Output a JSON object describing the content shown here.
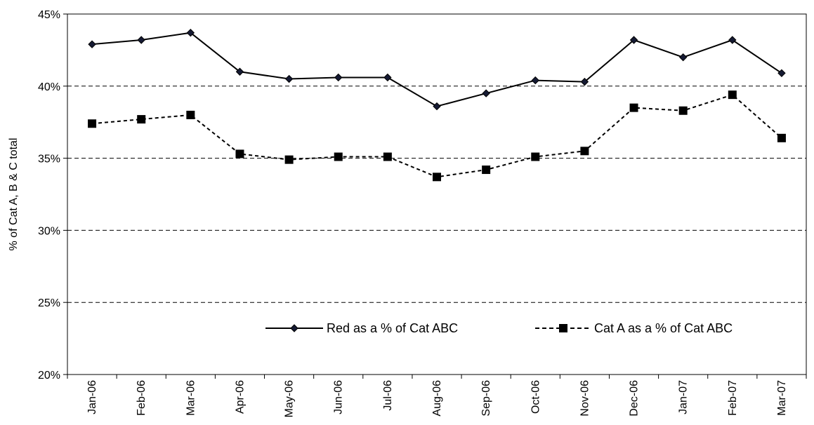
{
  "chart_data": {
    "type": "line",
    "title": "",
    "xlabel": "",
    "ylabel": "% of Cat A, B & C total",
    "ylim": [
      20,
      45
    ],
    "y_ticks": [
      20,
      25,
      30,
      35,
      40,
      45
    ],
    "y_tick_labels": [
      "20%",
      "25%",
      "30%",
      "35%",
      "40%",
      "45%"
    ],
    "grid": "horizontal dashed",
    "legend_position": "bottom-right inside plot",
    "categories": [
      "Jan-06",
      "Feb-06",
      "Mar-06",
      "Apr-06",
      "May-06",
      "Jun-06",
      "Jul-06",
      "Aug-06",
      "Sep-06",
      "Oct-06",
      "Nov-06",
      "Dec-06",
      "Jan-07",
      "Feb-07",
      "Mar-07"
    ],
    "series": [
      {
        "name": "Red as a % of Cat ABC",
        "values": [
          42.9,
          43.2,
          43.7,
          41.0,
          40.5,
          40.6,
          40.6,
          38.6,
          39.5,
          40.4,
          40.3,
          43.2,
          42.0,
          43.2,
          40.9
        ],
        "color": "#000000",
        "line_style": "solid",
        "marker": "diamond"
      },
      {
        "name": "Cat A as a % of Cat ABC",
        "values": [
          37.4,
          37.7,
          38.0,
          35.3,
          34.9,
          35.1,
          35.1,
          33.7,
          34.2,
          35.1,
          35.5,
          38.5,
          38.3,
          39.4,
          36.4
        ],
        "color": "#000000",
        "line_style": "dotted",
        "marker": "square"
      }
    ]
  }
}
